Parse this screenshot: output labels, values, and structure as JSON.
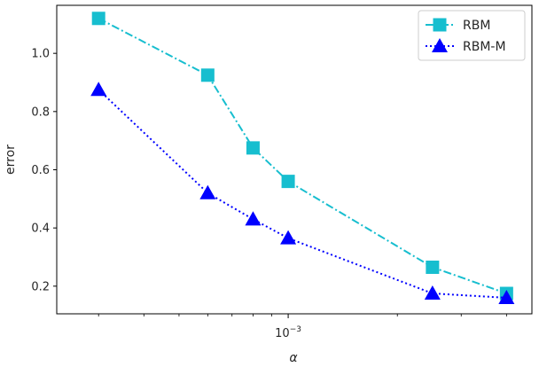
{
  "chart_data": {
    "type": "line",
    "title": "",
    "xlabel": "α",
    "ylabel": "error",
    "xscale": "log",
    "xlim": [
      0.00023,
      0.0047
    ],
    "ylim": [
      0.105,
      1.165
    ],
    "grid": false,
    "legend_position": "top-right",
    "x_ticks": [
      {
        "value": 0.001,
        "base": "10",
        "exp": "−3"
      }
    ],
    "y_ticks": [
      0.2,
      0.4,
      0.6,
      0.8,
      1.0
    ],
    "y_tick_labels": [
      "0.2",
      "0.4",
      "0.6",
      "0.8",
      "1.0"
    ],
    "series": [
      {
        "name": "RBM",
        "color": "#17becf",
        "marker": "square",
        "line_style": "dash-dot",
        "x": [
          0.0003,
          0.0006,
          0.0008,
          0.001,
          0.0025,
          0.004
        ],
        "y": [
          1.12,
          0.925,
          0.675,
          0.56,
          0.265,
          0.175
        ]
      },
      {
        "name": "RBM-M",
        "color": "#0000ff",
        "marker": "triangle",
        "line_style": "dotted",
        "x": [
          0.0003,
          0.0006,
          0.0008,
          0.001,
          0.0025,
          0.004
        ],
        "y": [
          0.875,
          0.52,
          0.43,
          0.365,
          0.175,
          0.16
        ]
      }
    ]
  }
}
